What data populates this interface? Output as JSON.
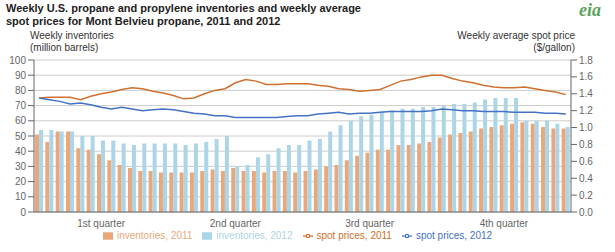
{
  "chart_data": {
    "type": "bar",
    "title": "Weekly U.S. propane and propylene inventories and weekly average",
    "subtitle": "spot prices for Mont Belvieu propane, 2011 and 2012",
    "ylabel": [
      "Weekly inventories",
      "(million barrels)"
    ],
    "y2label": [
      "Weekly average spot price",
      "($/gallon)"
    ],
    "annotations": [
      {
        "text": "eia",
        "color": "#5BA35A"
      }
    ],
    "categories": [
      null,
      null,
      null,
      null,
      null,
      null,
      "1st quarter",
      null,
      null,
      null,
      null,
      null,
      null,
      null,
      null,
      null,
      null,
      null,
      null,
      "2nd quarter",
      null,
      null,
      null,
      null,
      null,
      null,
      null,
      null,
      null,
      null,
      null,
      null,
      "3rd quarter",
      null,
      null,
      null,
      null,
      null,
      null,
      null,
      null,
      null,
      null,
      null,
      null,
      "4th quarter",
      null,
      null,
      null,
      null,
      null,
      null
    ],
    "series": [
      {
        "name": "inventories, 2011",
        "type": "bar",
        "color": "#E8A87C",
        "values": [
          51,
          46,
          53,
          53,
          42,
          41,
          38,
          34,
          31,
          29,
          27,
          27,
          26,
          26,
          26,
          26,
          27,
          28,
          27,
          29,
          27,
          27,
          26,
          27,
          27,
          26,
          27,
          28,
          30,
          31,
          34,
          37,
          39,
          41,
          41,
          44,
          44,
          45,
          46,
          49,
          51,
          52,
          53,
          55,
          56,
          57,
          58,
          59,
          58,
          56,
          55,
          55
        ]
      },
      {
        "name": "inventories, 2012",
        "type": "bar",
        "color": "#ACD6E8",
        "values": [
          54,
          54,
          53,
          53,
          50,
          50,
          47,
          47,
          45,
          44,
          45,
          45,
          45,
          45,
          44,
          45,
          46,
          48,
          50,
          30,
          31,
          36,
          38,
          42,
          44,
          44,
          47,
          48,
          53,
          57,
          60,
          63,
          64,
          66,
          67,
          68,
          68,
          69,
          69,
          70,
          71,
          71,
          72,
          74,
          75,
          75,
          75,
          60,
          60,
          60,
          58,
          56
        ]
      },
      {
        "name": "spot prices, 2011",
        "type": "line",
        "axis": "y2",
        "color": "#D07030",
        "values": [
          1.35,
          1.36,
          1.36,
          1.36,
          1.33,
          1.37,
          1.4,
          1.42,
          1.45,
          1.47,
          1.46,
          1.43,
          1.41,
          1.38,
          1.34,
          1.35,
          1.4,
          1.44,
          1.46,
          1.53,
          1.57,
          1.55,
          1.51,
          1.51,
          1.52,
          1.52,
          1.52,
          1.5,
          1.49,
          1.46,
          1.45,
          1.43,
          1.44,
          1.45,
          1.5,
          1.55,
          1.57,
          1.6,
          1.62,
          1.62,
          1.58,
          1.55,
          1.53,
          1.5,
          1.48,
          1.47,
          1.47,
          1.48,
          1.46,
          1.44,
          1.42,
          1.39
        ]
      },
      {
        "name": "spot prices, 2012",
        "type": "line",
        "axis": "y2",
        "color": "#4472C4",
        "values": [
          1.35,
          1.33,
          1.31,
          1.28,
          1.29,
          1.27,
          1.24,
          1.22,
          1.24,
          1.22,
          1.2,
          1.21,
          1.22,
          1.21,
          1.19,
          1.17,
          1.16,
          1.14,
          1.14,
          1.12,
          1.12,
          1.12,
          1.12,
          1.12,
          1.13,
          1.14,
          1.14,
          1.16,
          1.17,
          1.18,
          1.16,
          1.17,
          1.17,
          1.18,
          1.19,
          1.19,
          1.19,
          1.19,
          1.2,
          1.22,
          1.21,
          1.2,
          1.2,
          1.19,
          1.19,
          1.19,
          1.18,
          1.18,
          1.18,
          1.17,
          1.17,
          1.16
        ]
      }
    ],
    "ylim": [
      0,
      100
    ],
    "yticks": [
      0,
      10,
      20,
      30,
      40,
      50,
      60,
      70,
      80,
      90,
      100
    ],
    "y2lim": [
      0.0,
      1.8
    ],
    "y2ticks": [
      {
        "value": 0,
        "label": "0.0"
      },
      0.2,
      0.4,
      0.6,
      0.8,
      {
        "value": 1,
        "label": "1.0"
      },
      1.2,
      1.4,
      1.6,
      1.8
    ],
    "grid": true,
    "legend": "bottom"
  }
}
